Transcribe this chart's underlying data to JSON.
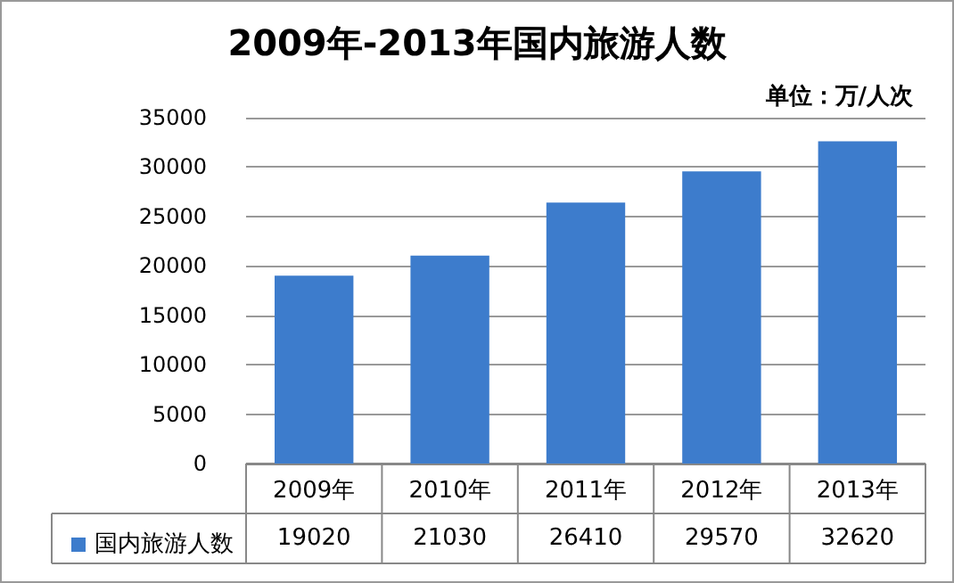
{
  "chart_data": {
    "type": "bar",
    "title": "2009年-2013年国内旅游人数",
    "subtitle": "单位：万/人次",
    "categories": [
      "2009年",
      "2010年",
      "2011年",
      "2012年",
      "2013年"
    ],
    "series": [
      {
        "name": "国内旅游人数",
        "color": "#3d7ccc",
        "values": [
          19020,
          21030,
          26410,
          29570,
          32620
        ]
      }
    ],
    "ylim": [
      0,
      35000
    ],
    "yticks": [
      0,
      5000,
      10000,
      15000,
      20000,
      25000,
      30000,
      35000
    ],
    "grid": "y",
    "legend": "bottom left",
    "data_labels": true
  }
}
